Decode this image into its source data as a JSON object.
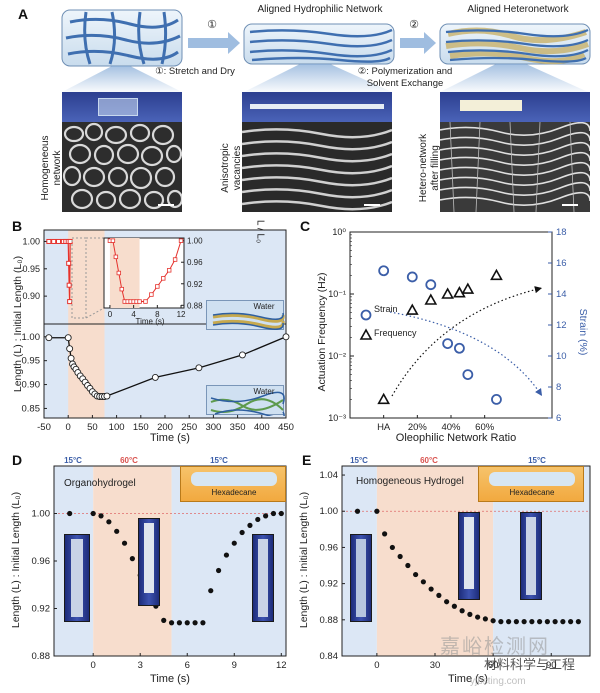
{
  "panelA": {
    "letter": "A",
    "titles": [
      "Aligned Hydrophilic Network",
      "Aligned Heteronetwork"
    ],
    "step1_num": "①",
    "step1_label": "①: Stretch and Dry",
    "step2_num": "②",
    "step2_label_line1": "②: Polymerization and",
    "step2_label_line2": "Solvent Exchange",
    "side_labels": [
      {
        "line1": "Homogeneous",
        "line2": "network"
      },
      {
        "line1": "Anisotropic",
        "line2": "vacancies"
      },
      {
        "line1": "Hetero-network",
        "line2": "after filling"
      }
    ]
  },
  "panelB": {
    "letter": "B",
    "ylabel": "Length (L) : Initial Length (L₀)",
    "xlabel": "Time (s)",
    "inset_ylabel": "L / L₀",
    "inset_xlabel": "Time (s)",
    "water_label": "Water",
    "water_label_lower": "Water"
  },
  "panelC": {
    "letter": "C",
    "ylabel_left": "Actuation Frequency (Hz)",
    "ylabel_right": "Strain (%)",
    "xlabel": "Oleophilic Network Ratio",
    "legend_strain": "Strain",
    "legend_frequency": "Frequency"
  },
  "panelD": {
    "letter": "D",
    "label": "Organohydrogel",
    "tag": "Hexadecane",
    "temp_left": "15°C",
    "temp_mid": "60°C",
    "temp_right": "15°C",
    "ylabel": "Length (L) : Initial Length (L₀)",
    "xlabel": "Time (s)"
  },
  "panelE": {
    "letter": "E",
    "label": "Homogeneous Hydrogel",
    "tag": "Hexadecane",
    "temp_left": "15°C",
    "temp_mid": "60°C",
    "temp_right": "15°C",
    "ylabel": "Length (L) : Initial Length (L₀)",
    "xlabel": "Time (s)"
  },
  "watermark": {
    "line1": "嘉峪检测网",
    "line2": "材料科学与工程",
    "line3": "yjbsting.com"
  },
  "chart_data": [
    {
      "id": "B_main",
      "type": "line",
      "title": "",
      "xlabel": "Time (s)",
      "ylabel": "Length (L) : Initial Length (L₀)",
      "xlim": [
        -50,
        450
      ],
      "ylim": [
        0.83,
        1.01
      ],
      "xticks": [
        -50,
        0,
        50,
        100,
        150,
        200,
        250,
        300,
        350,
        400,
        450
      ],
      "yticks": [
        0.85,
        0.9,
        0.95,
        1.0
      ],
      "ytick_labels": [
        "0.85",
        "0.90",
        "0.95",
        "1.00"
      ],
      "shaded_x": [
        0,
        75
      ],
      "x": [
        -40,
        0,
        3,
        6,
        9,
        12,
        16,
        20,
        25,
        30,
        35,
        40,
        45,
        50,
        55,
        60,
        65,
        70,
        75,
        80,
        180,
        270,
        360,
        450
      ],
      "y": [
        0.998,
        0.998,
        0.975,
        0.955,
        0.943,
        0.937,
        0.932,
        0.925,
        0.918,
        0.912,
        0.905,
        0.898,
        0.892,
        0.885,
        0.88,
        0.876,
        0.875,
        0.875,
        0.875,
        0.876,
        0.915,
        0.935,
        0.962,
        1.0
      ]
    },
    {
      "id": "B_top_inset_segment",
      "type": "line",
      "xlim": [
        -50,
        450
      ],
      "ylim": [
        0.86,
        1.01
      ],
      "yticks": [
        0.9,
        0.95,
        1.0
      ],
      "ytick_labels": [
        "0.90",
        "0.95",
        "1.00"
      ],
      "x": [
        -40,
        -30,
        -20,
        -10,
        -5,
        0,
        1,
        2,
        3,
        4
      ],
      "y": [
        1.0,
        1.0,
        1.0,
        1.0,
        1.0,
        1.0,
        0.96,
        0.92,
        0.89,
        1.0
      ]
    },
    {
      "id": "B_inset",
      "type": "line",
      "xlabel": "Time (s)",
      "ylabel": "L / L₀",
      "xlim": [
        -1,
        12.5
      ],
      "ylim": [
        0.875,
        1.005
      ],
      "xticks": [
        0,
        4,
        8,
        12
      ],
      "yticks": [
        0.88,
        0.92,
        0.96,
        1.0
      ],
      "ytick_labels": [
        "0.88",
        "0.92",
        "0.96",
        "1.00"
      ],
      "shaded_x": [
        0,
        5
      ],
      "x": [
        0,
        0.5,
        1,
        1.5,
        2,
        2.5,
        3,
        3.5,
        4,
        4.5,
        5,
        6,
        7,
        8,
        9,
        10,
        11,
        12
      ],
      "y": [
        1.0,
        1.0,
        0.97,
        0.94,
        0.91,
        0.887,
        0.887,
        0.887,
        0.887,
        0.887,
        0.887,
        0.887,
        0.9,
        0.915,
        0.93,
        0.945,
        0.965,
        1.0
      ]
    },
    {
      "id": "C",
      "type": "scatter",
      "xlabel": "Oleophilic Network Ratio",
      "ylabel": "Actuation Frequency (Hz)",
      "categories": [
        "HA",
        "20%",
        "40%",
        "60%"
      ],
      "x_range": [
        -0.2,
        1.0
      ],
      "log_y": true,
      "ylim": [
        0.001,
        1
      ],
      "y_ticks_labels": [
        "10⁻³",
        "10⁻²",
        "10⁻¹",
        "10⁰"
      ],
      "y2_label": "Strain (%)",
      "y2lim": [
        6,
        18
      ],
      "y2_ticks": [
        6,
        8,
        10,
        12,
        14,
        16,
        18
      ],
      "series": [
        {
          "name": "Strain",
          "marker": "circle",
          "axis": "right",
          "x": [
            0.0,
            0.17,
            0.28,
            0.38,
            0.45,
            0.5,
            0.67
          ],
          "y": [
            15.5,
            15.1,
            14.6,
            10.8,
            10.5,
            8.8,
            7.2
          ]
        },
        {
          "name": "Frequency",
          "marker": "triangle",
          "axis": "left",
          "x": [
            0.0,
            0.17,
            0.28,
            0.38,
            0.45,
            0.5,
            0.67
          ],
          "y": [
            0.002,
            0.055,
            0.08,
            0.1,
            0.105,
            0.12,
            0.2
          ]
        }
      ]
    },
    {
      "id": "D",
      "type": "scatter",
      "xlabel": "Time (s)",
      "ylabel": "Length (L) : Initial Length (L₀)",
      "xlim": [
        -2.5,
        12.3
      ],
      "ylim": [
        0.88,
        1.04
      ],
      "xticks": [
        0,
        3,
        6,
        9,
        12
      ],
      "yticks": [
        0.88,
        0.92,
        0.96,
        1.0
      ],
      "ytick_labels": [
        "0.88",
        "0.92",
        "0.96",
        "1.00"
      ],
      "shaded_x": [
        0,
        5
      ],
      "x": [
        -1.5,
        0,
        0.5,
        1,
        1.5,
        2,
        2.5,
        3,
        3.5,
        4,
        4.5,
        5,
        5.5,
        6,
        6.5,
        7,
        7.5,
        8,
        8.5,
        9,
        9.5,
        10,
        10.5,
        11,
        11.5,
        12
      ],
      "y": [
        1.0,
        1.0,
        0.998,
        0.993,
        0.985,
        0.975,
        0.962,
        0.948,
        0.935,
        0.922,
        0.91,
        0.908,
        0.908,
        0.908,
        0.908,
        0.908,
        0.935,
        0.952,
        0.965,
        0.975,
        0.984,
        0.99,
        0.995,
        0.998,
        1.0,
        1.0
      ]
    },
    {
      "id": "E",
      "type": "scatter",
      "xlabel": "Time (s)",
      "ylabel": "Length (L) : Initial Length (L₀)",
      "xlim": [
        -18,
        110
      ],
      "ylim": [
        0.84,
        1.05
      ],
      "xticks": [
        0,
        30,
        60,
        90
      ],
      "yticks": [
        0.84,
        0.88,
        0.92,
        0.96,
        1.0,
        1.04
      ],
      "ytick_labels": [
        "0.84",
        "0.88",
        "0.92",
        "0.96",
        "1.00",
        "1.04"
      ],
      "shaded_x": [
        0,
        60
      ],
      "x": [
        -10,
        0,
        4,
        8,
        12,
        16,
        20,
        24,
        28,
        32,
        36,
        40,
        44,
        48,
        52,
        56,
        60,
        64,
        68,
        72,
        76,
        80,
        84,
        88,
        92,
        96,
        100,
        104
      ],
      "y": [
        1.0,
        1.0,
        0.975,
        0.96,
        0.95,
        0.94,
        0.93,
        0.922,
        0.914,
        0.907,
        0.9,
        0.895,
        0.89,
        0.886,
        0.883,
        0.881,
        0.879,
        0.878,
        0.878,
        0.878,
        0.878,
        0.878,
        0.878,
        0.878,
        0.878,
        0.878,
        0.878,
        0.878
      ]
    }
  ]
}
